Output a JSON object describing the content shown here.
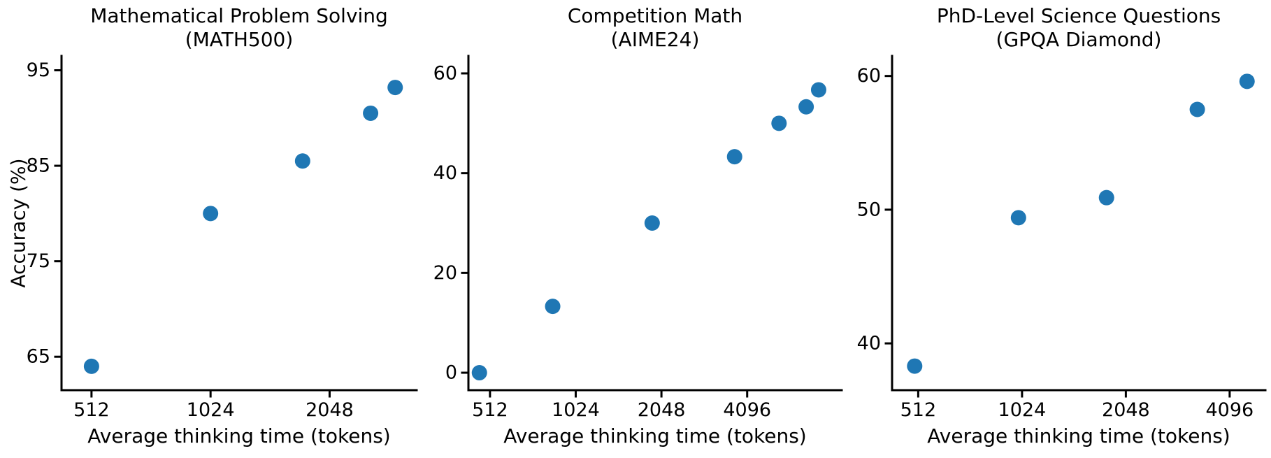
{
  "figure": {
    "background": "#ffffff",
    "marker_color": "#1f77b4",
    "axis_color": "#000000",
    "text_color": "#000000"
  },
  "chart_data": [
    {
      "type": "scatter",
      "title_lines": [
        "Mathematical Problem Solving",
        "(MATH500)"
      ],
      "xlabel": "Average thinking time (tokens)",
      "ylabel": "Accuracy (%)",
      "x_scale": "log2",
      "grid": false,
      "legend": false,
      "x_ticks": [
        512,
        1024,
        2048
      ],
      "y_ticks": [
        65,
        75,
        85,
        95
      ],
      "xlim": [
        430,
        3400
      ],
      "ylim": [
        61.5,
        96.5
      ],
      "points": [
        [
          512,
          64.0
        ],
        [
          1024,
          80.0
        ],
        [
          1750,
          85.5
        ],
        [
          2600,
          90.5
        ],
        [
          3000,
          93.2
        ]
      ]
    },
    {
      "type": "scatter",
      "title_lines": [
        "Competition Math",
        "(AIME24)"
      ],
      "xlabel": "Average thinking time (tokens)",
      "x_scale": "log2",
      "grid": false,
      "legend": false,
      "x_ticks": [
        512,
        1024,
        2048,
        4096
      ],
      "y_ticks": [
        0,
        20,
        40,
        60
      ],
      "xlim": [
        430,
        8800
      ],
      "ylim": [
        -3.5,
        63.5
      ],
      "points": [
        [
          470,
          0.0
        ],
        [
          850,
          13.3
        ],
        [
          1900,
          30.0
        ],
        [
          3700,
          43.3
        ],
        [
          5300,
          50.0
        ],
        [
          6600,
          53.3
        ],
        [
          7300,
          56.7
        ]
      ]
    },
    {
      "type": "scatter",
      "title_lines": [
        "PhD-Level Science Questions",
        "(GPQA Diamond)"
      ],
      "xlabel": "Average thinking time (tokens)",
      "x_scale": "log2",
      "grid": false,
      "legend": false,
      "x_ticks": [
        512,
        1024,
        2048,
        4096
      ],
      "y_ticks": [
        40,
        50,
        60
      ],
      "xlim": [
        430,
        5200
      ],
      "ylim": [
        36.5,
        61.5
      ],
      "points": [
        [
          500,
          38.3
        ],
        [
          1000,
          49.4
        ],
        [
          1800,
          50.9
        ],
        [
          3300,
          57.5
        ],
        [
          4600,
          59.6
        ]
      ]
    }
  ]
}
